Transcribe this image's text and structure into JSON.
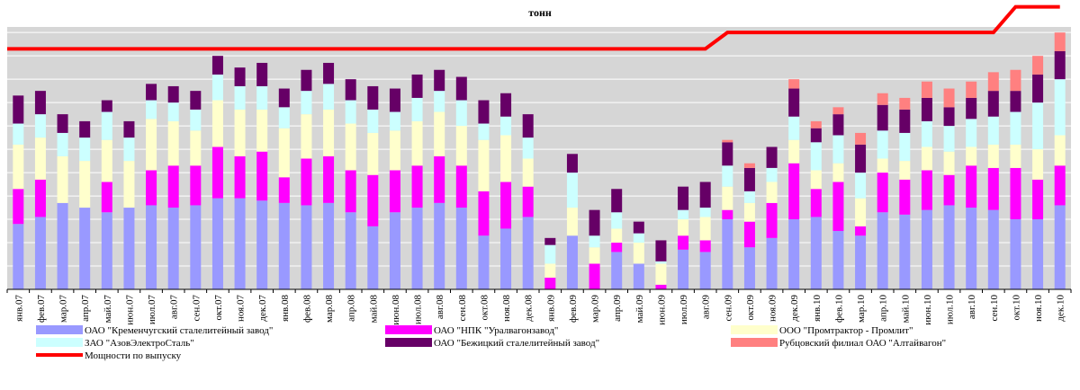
{
  "chart_data": {
    "type": "bar",
    "stacked": true,
    "title": "тонн",
    "categories": [
      "янв.07",
      "фев.07",
      "мар.07",
      "апр.07",
      "май.07",
      "июн.07",
      "июл.07",
      "авг.07",
      "сен.07",
      "окт.07",
      "ноя.07",
      "дек.07",
      "янв.08",
      "фев.08",
      "мар.08",
      "апр.08",
      "май.08",
      "июн.08",
      "июл.08",
      "авг.08",
      "сен.08",
      "окт.08",
      "ноя.08",
      "дек.08",
      "янв.09",
      "фев.09",
      "мар.09",
      "апр.09",
      "май.09",
      "июн.09",
      "июл.09",
      "авг.09",
      "сен.09",
      "окт.09",
      "ноя.09",
      "дек.09",
      "янв.10",
      "фев.10",
      "мар.10",
      "апр.10",
      "май.10",
      "июн.10",
      "июл.10",
      "авг.10",
      "сен.10",
      "окт.10",
      "ноя.10",
      "дек.10"
    ],
    "ylim": [
      0,
      122
    ],
    "yticks": [
      0,
      10,
      20,
      30,
      40,
      50,
      60,
      70,
      80,
      90,
      100,
      110,
      120
    ],
    "grid": true,
    "series": [
      {
        "name": "ОАО \"Кременчугский сталелитейный завод\"",
        "color": "#9999ff",
        "values": [
          28,
          31,
          37,
          35,
          33,
          35,
          36,
          35,
          36,
          39,
          39,
          38,
          37,
          36,
          37,
          33,
          27,
          33,
          35,
          37,
          35,
          23,
          26,
          31,
          0,
          23,
          0,
          16,
          11,
          0,
          17,
          16,
          30,
          18,
          22,
          30,
          31,
          25,
          23,
          33,
          32,
          34,
          36,
          35,
          34,
          30,
          30,
          36
        ]
      },
      {
        "name": "ОАО \"НПК \"Уралвагонзавод\"",
        "color": "#ff00ff",
        "values": [
          15,
          16,
          0,
          0,
          13,
          0,
          15,
          18,
          17,
          22,
          18,
          21,
          11,
          20,
          20,
          18,
          22,
          18,
          18,
          20,
          18,
          19,
          20,
          13,
          5,
          0,
          11,
          4,
          0,
          2,
          6,
          5,
          4,
          11,
          15,
          24,
          12,
          21,
          4,
          17,
          15,
          17,
          13,
          18,
          18,
          22,
          17,
          17
        ]
      },
      {
        "name": "ООО \"Промтрактор - Промлит\"",
        "color": "#ffffcc",
        "values": [
          19,
          18,
          20,
          20,
          18,
          20,
          22,
          19,
          15,
          20,
          20,
          18,
          21,
          19,
          20,
          20,
          18,
          17,
          19,
          19,
          17,
          22,
          20,
          12,
          6,
          12,
          7,
          6,
          9,
          9,
          7,
          10,
          10,
          8,
          9,
          10,
          8,
          8,
          12,
          6,
          8,
          10,
          10,
          8,
          10,
          10,
          13,
          13
        ]
      },
      {
        "name": "ЗАО \"АзовЭлектроСталь\"",
        "color": "#ccffff",
        "values": [
          9,
          10,
          10,
          10,
          12,
          10,
          8,
          8,
          9,
          11,
          10,
          10,
          9,
          10,
          11,
          10,
          10,
          8,
          10,
          9,
          11,
          7,
          8,
          9,
          8,
          15,
          5,
          7,
          4,
          1,
          4,
          4,
          9,
          5,
          6,
          10,
          12,
          12,
          11,
          12,
          12,
          11,
          11,
          12,
          12,
          14,
          20,
          24
        ]
      },
      {
        "name": "ОАО \"Бежицкий сталелитейный завод\"",
        "color": "#660066",
        "values": [
          12,
          10,
          8,
          7,
          5,
          7,
          7,
          7,
          8,
          8,
          8,
          10,
          8,
          9,
          9,
          9,
          10,
          10,
          10,
          9,
          10,
          10,
          10,
          10,
          3,
          8,
          11,
          10,
          5,
          9,
          10,
          11,
          10,
          10,
          9,
          12,
          6,
          9,
          12,
          11,
          10,
          10,
          8,
          9,
          11,
          9,
          12,
          12
        ]
      },
      {
        "name": "Рубцовский филиал ОАО \"Алтайвагон\"",
        "color": "#ff8080",
        "values": [
          0,
          0,
          0,
          0,
          0,
          0,
          0,
          0,
          0,
          0,
          0,
          0,
          0,
          0,
          0,
          0,
          0,
          0,
          0,
          0,
          0,
          0,
          0,
          0,
          0,
          0,
          0,
          0,
          0,
          0,
          0,
          0,
          1,
          2,
          0,
          4,
          3,
          3,
          5,
          5,
          5,
          7,
          8,
          7,
          8,
          9,
          8,
          8
        ]
      },
      {
        "name": "Мощности по выпуску",
        "type": "line",
        "color": "#ff0000",
        "values": [
          103,
          103,
          103,
          103,
          103,
          103,
          103,
          103,
          103,
          103,
          103,
          103,
          103,
          103,
          103,
          103,
          103,
          103,
          103,
          103,
          103,
          103,
          103,
          103,
          103,
          103,
          103,
          103,
          103,
          103,
          103,
          103,
          110,
          110,
          110,
          110,
          110,
          110,
          110,
          110,
          110,
          110,
          110,
          110,
          110,
          121,
          121,
          121
        ]
      }
    ]
  }
}
